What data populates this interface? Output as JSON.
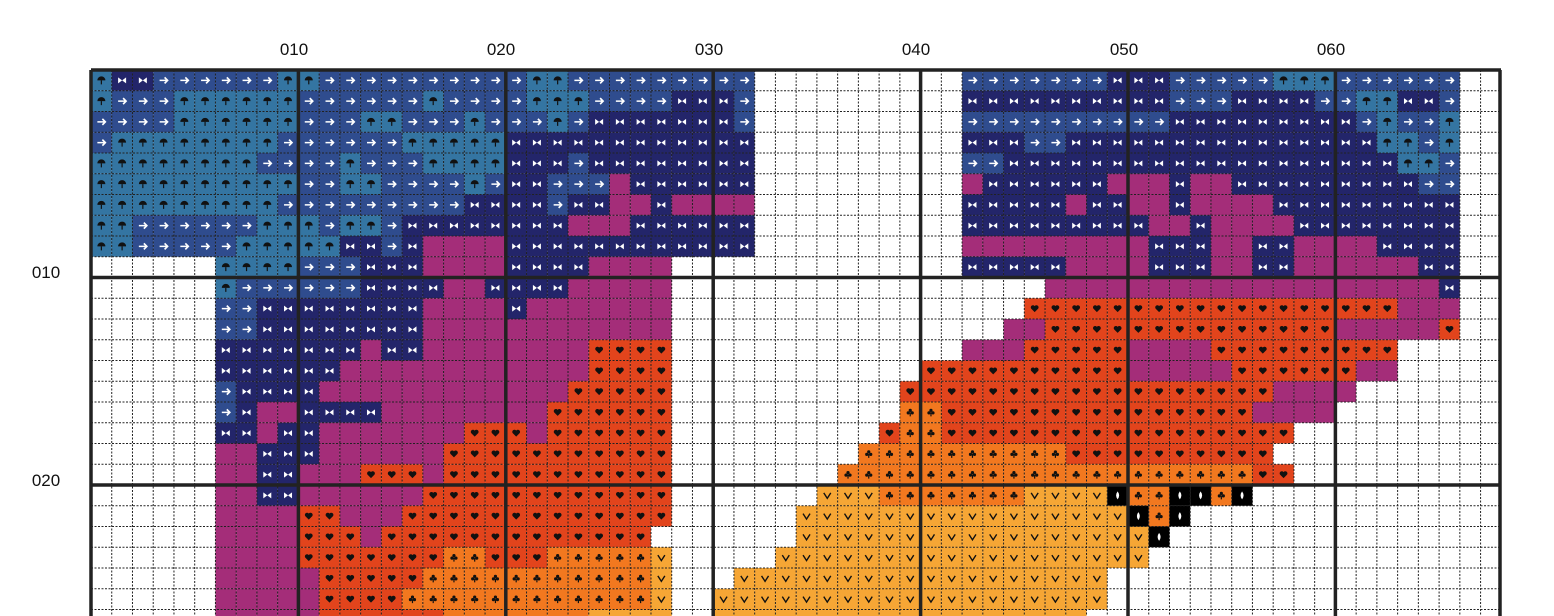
{
  "pattern": {
    "column_labels": [
      "010",
      "020",
      "030",
      "040",
      "050",
      "060"
    ],
    "row_labels": [
      "010",
      "020"
    ],
    "colors": {
      "blank": "#ffffff",
      "deep_navy": "#23256a",
      "mid_blue": "#2f4c8e",
      "steel_blue": "#3475a2",
      "magenta": "#a42d79",
      "red_orange": "#e2441c",
      "orange": "#f2781f",
      "light_orange": "#f6a635",
      "accent_black": "#000000",
      "grid_line": "#222222"
    },
    "symbols": {
      "deep_navy": "bowtie-icon",
      "mid_blue": "arrow-right-icon",
      "steel_blue": "umbrella-icon",
      "magenta": "crescent-icon",
      "red_orange": "heart-icon",
      "orange": "club-icon",
      "light_orange": "check-v-icon",
      "accent_black": "drop-icon"
    }
  }
}
